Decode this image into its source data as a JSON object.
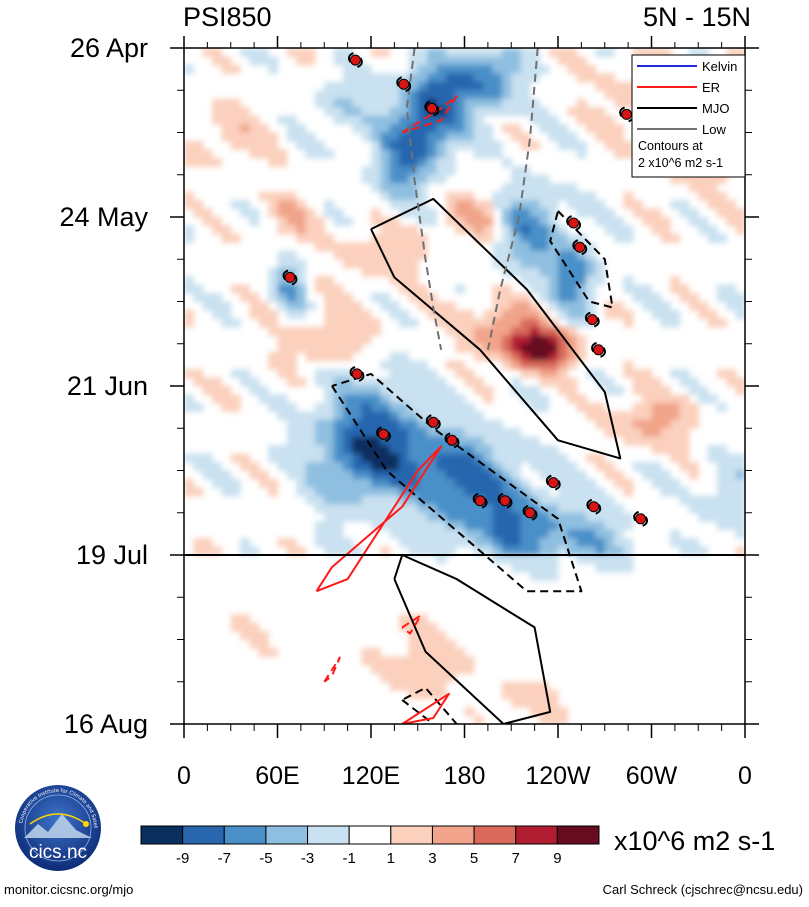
{
  "chart_data": {
    "type": "heatmap",
    "title_left": "PSI850",
    "title_right": "5N - 15N",
    "xlabel": "",
    "ylabel": "",
    "x_tick_labels": [
      "0",
      "60E",
      "120E",
      "180",
      "120W",
      "60W",
      "0"
    ],
    "x_tick_values_lon": [
      0,
      60,
      120,
      180,
      240,
      300,
      360
    ],
    "xlim": [
      0,
      360
    ],
    "y_tick_labels": [
      "26 Apr",
      "24 May",
      "21 Jun",
      "19 Jul",
      "16 Aug"
    ],
    "y_tick_values_day": [
      0,
      28,
      56,
      84,
      112
    ],
    "ylim_day": [
      0,
      112
    ],
    "forecast_start_day": 84,
    "colorbar": {
      "units": "x10^6 m2 s-1",
      "labels": [
        "-9",
        "-7",
        "-5",
        "-3",
        "-1",
        "1",
        "3",
        "5",
        "7",
        "9"
      ],
      "colors": [
        "#0a2f5e",
        "#2866ae",
        "#4a8fc8",
        "#8fbfe0",
        "#c9e1f0",
        "#ffffff",
        "#fbd0bd",
        "#f1a48a",
        "#d96a5b",
        "#b01c30",
        "#660b20"
      ]
    },
    "legend": {
      "position": "top-right",
      "entries": [
        {
          "name": "Kelvin",
          "color": "#1f2bd6"
        },
        {
          "name": "ER",
          "color": "#ff1a1a"
        },
        {
          "name": "MJO",
          "color": "#000000"
        },
        {
          "name": "Low",
          "color": "#707070"
        }
      ],
      "note_line1": "Contours at",
      "note_line2": "2 x10^6 m2 s-1"
    },
    "tropical_cyclones_lon_day": [
      [
        110,
        2
      ],
      [
        141,
        6
      ],
      [
        159,
        10
      ],
      [
        284,
        11
      ],
      [
        68,
        38
      ],
      [
        250,
        29
      ],
      [
        254,
        33
      ],
      [
        262,
        45
      ],
      [
        266,
        50
      ],
      [
        111,
        54
      ],
      [
        128,
        64
      ],
      [
        160,
        62
      ],
      [
        172,
        65
      ],
      [
        237,
        72
      ],
      [
        190,
        75
      ],
      [
        206,
        75
      ],
      [
        222,
        77
      ],
      [
        263,
        76
      ],
      [
        293,
        78
      ]
    ],
    "mjo_contours": [
      {
        "style": "solid",
        "points": [
          [
            120,
            30
          ],
          [
            135,
            38
          ],
          [
            190,
            50
          ],
          [
            240,
            65
          ],
          [
            280,
            68
          ],
          [
            270,
            57
          ],
          [
            220,
            40
          ],
          [
            160,
            25
          ],
          [
            120,
            30
          ]
        ]
      },
      {
        "style": "dashed",
        "points": [
          [
            240,
            27
          ],
          [
            270,
            35
          ],
          [
            275,
            43
          ],
          [
            260,
            42
          ],
          [
            235,
            32
          ],
          [
            240,
            27
          ]
        ]
      },
      {
        "style": "dashed",
        "points": [
          [
            95,
            56
          ],
          [
            130,
            70
          ],
          [
            220,
            90
          ],
          [
            255,
            90
          ],
          [
            240,
            78
          ],
          [
            160,
            63
          ],
          [
            120,
            54
          ],
          [
            95,
            56
          ]
        ]
      },
      {
        "style": "solid",
        "points": [
          [
            135,
            88
          ],
          [
            155,
            100
          ],
          [
            205,
            112
          ],
          [
            235,
            110
          ],
          [
            225,
            96
          ],
          [
            175,
            88
          ],
          [
            140,
            84
          ],
          [
            135,
            88
          ]
        ]
      },
      {
        "style": "dashed",
        "points": [
          [
            140,
            108
          ],
          [
            165,
            113
          ],
          [
            175,
            112
          ],
          [
            155,
            106
          ],
          [
            140,
            108
          ]
        ]
      }
    ],
    "er_contours": [
      {
        "style": "dashed",
        "points": [
          [
            140,
            14
          ],
          [
            165,
            10
          ],
          [
            175,
            8
          ],
          [
            165,
            12
          ],
          [
            140,
            14
          ]
        ]
      },
      {
        "style": "solid",
        "points": [
          [
            85,
            90
          ],
          [
            105,
            88
          ],
          [
            150,
            70
          ],
          [
            165,
            66
          ],
          [
            140,
            76
          ],
          [
            95,
            86
          ],
          [
            85,
            90
          ]
        ]
      },
      {
        "style": "dashed",
        "points": [
          [
            140,
            96
          ],
          [
            152,
            94
          ],
          [
            145,
            97
          ],
          [
            140,
            96
          ]
        ]
      },
      {
        "style": "dashed",
        "points": [
          [
            90,
            105
          ],
          [
            100,
            101
          ],
          [
            95,
            104
          ],
          [
            90,
            105
          ]
        ]
      },
      {
        "style": "solid",
        "points": [
          [
            140,
            112
          ],
          [
            170,
            107
          ],
          [
            160,
            111
          ],
          [
            140,
            112
          ]
        ]
      }
    ],
    "low_contours": [
      {
        "style": "dashed",
        "points": [
          [
            148,
            0
          ],
          [
            143,
            10
          ],
          [
            148,
            22
          ],
          [
            155,
            35
          ],
          [
            160,
            43
          ],
          [
            165,
            50
          ]
        ]
      },
      {
        "style": "dashed",
        "points": [
          [
            227,
            0
          ],
          [
            222,
            15
          ],
          [
            215,
            28
          ],
          [
            203,
            40
          ],
          [
            195,
            50
          ]
        ]
      }
    ]
  },
  "footer": {
    "left": "monitor.cicsnc.org/mjo",
    "right": "Carl Schreck (cjschrec@ncsu.edu)"
  },
  "logo": {
    "text": "cics.nc",
    "ring_text": "Cooperative Institute for Climate and Satellites"
  }
}
